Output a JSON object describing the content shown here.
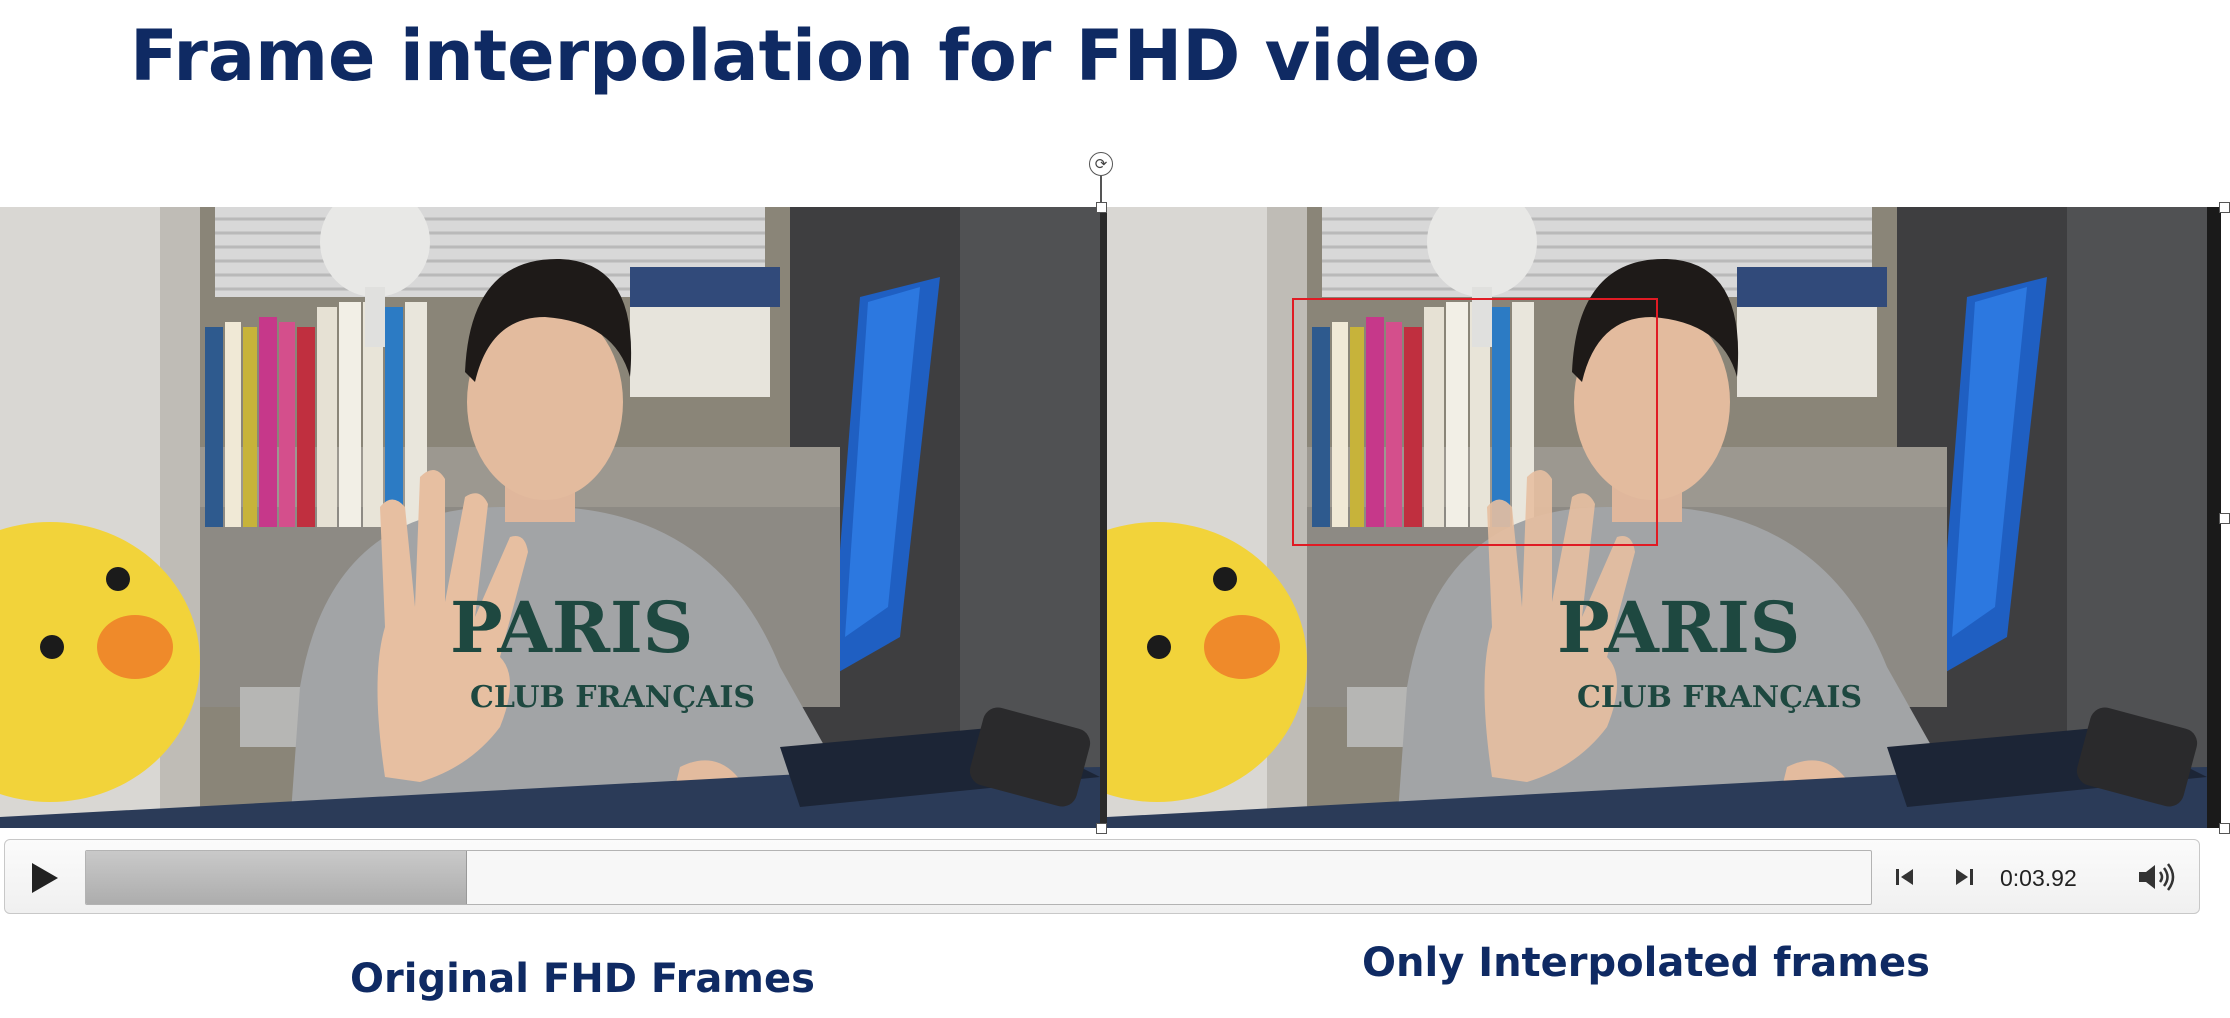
{
  "slide": {
    "title": "Frame interpolation for FHD video"
  },
  "video": {
    "left_panel_label": "Original FHD Frames",
    "right_panel_label": "Only Interpolated frames",
    "sweatshirt_text_main": "PARIS",
    "sweatshirt_text_sub": "CLUB FRANÇAIS",
    "highlight_color": "#e01b24"
  },
  "player": {
    "progress": 0.213,
    "time": "0:03.92",
    "icons": {
      "play": "play-icon",
      "step_back": "step-back-icon",
      "step_forward": "step-forward-icon",
      "volume": "volume-icon"
    }
  },
  "colors": {
    "title": "#0f2a63",
    "caption": "#0f2a63"
  }
}
